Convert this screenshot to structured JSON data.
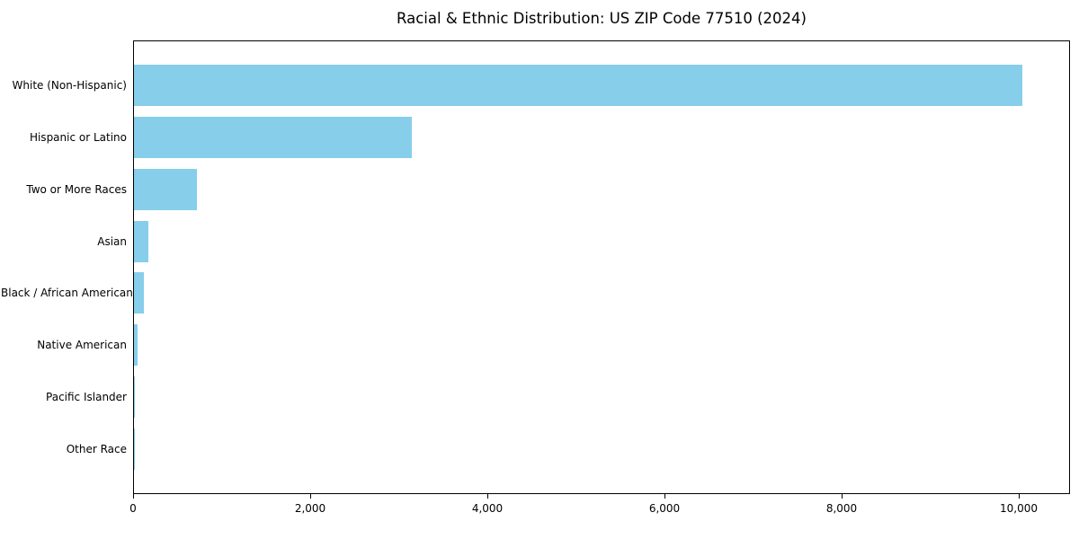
{
  "chart_data": {
    "type": "bar",
    "orientation": "horizontal",
    "title": "Racial & Ethnic Distribution: US ZIP Code 77510 (2024)",
    "categories": [
      "White (Non-Hispanic)",
      "Hispanic or Latino",
      "Two or More Races",
      "Asian",
      "Black / African American",
      "Native American",
      "Pacific Islander",
      "Other Race"
    ],
    "values": [
      10030,
      3140,
      715,
      160,
      110,
      45,
      8,
      4
    ],
    "bar_color": "#87CEEB",
    "xlabel": "",
    "ylabel": "",
    "xlim": [
      0,
      10558
    ],
    "xticks": [
      0,
      2000,
      4000,
      6000,
      8000,
      10000
    ],
    "xtick_labels": [
      "0",
      "2,000",
      "4,000",
      "6,000",
      "8,000",
      "10,000"
    ],
    "grid": false,
    "legend_position": "none",
    "axis_color": "#000000",
    "background_color": "#ffffff"
  }
}
